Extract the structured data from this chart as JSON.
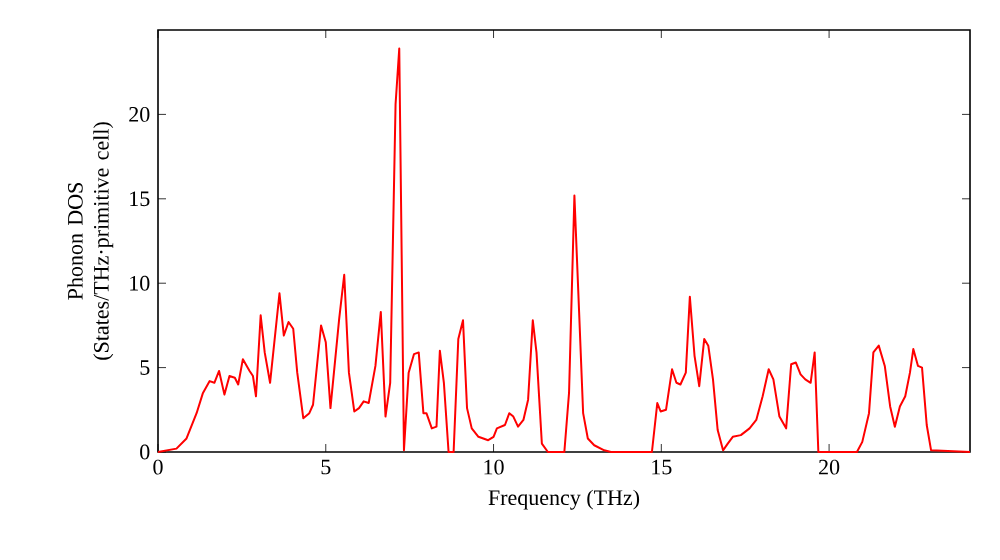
{
  "chart_data": {
    "type": "line",
    "xlabel": "Frequency (THz)",
    "ylabel": "Phonon DOS (States/THz·primitive cell)",
    "xlim": [
      0,
      24.2
    ],
    "ylim": [
      0,
      25
    ],
    "xticks": [
      0,
      5,
      10,
      15,
      20
    ],
    "yticks": [
      0,
      5,
      10,
      15,
      20
    ],
    "grid": false,
    "series": [
      {
        "color": "#ff0000",
        "x": [
          0,
          0.55,
          0.85,
          1.15,
          1.34,
          1.54,
          1.68,
          1.82,
          1.98,
          2.13,
          2.29,
          2.39,
          2.53,
          2.73,
          2.83,
          2.92,
          3.06,
          3.18,
          3.34,
          3.62,
          3.75,
          3.89,
          4.03,
          4.15,
          4.33,
          4.51,
          4.62,
          4.86,
          5.0,
          5.14,
          5.4,
          5.55,
          5.69,
          5.85,
          5.99,
          6.13,
          6.28,
          6.48,
          6.64,
          6.78,
          6.92,
          7.08,
          7.19,
          7.33,
          7.47,
          7.63,
          7.77,
          7.91,
          8.0,
          8.16,
          8.3,
          8.4,
          8.52,
          8.66,
          8.81,
          8.95,
          9.09,
          9.21,
          9.35,
          9.55,
          9.84,
          10.0,
          10.1,
          10.34,
          10.47,
          10.59,
          10.73,
          10.89,
          11.03,
          11.17,
          11.28,
          11.44,
          11.62,
          12.11,
          12.25,
          12.41,
          12.55,
          12.67,
          12.81,
          13.0,
          13.3,
          13.5,
          14.72,
          14.88,
          14.98,
          15.14,
          15.32,
          15.45,
          15.57,
          15.73,
          15.85,
          15.99,
          16.13,
          16.28,
          16.4,
          16.54,
          16.68,
          16.84,
          16.98,
          17.13,
          17.37,
          17.63,
          17.83,
          18.02,
          18.2,
          18.34,
          18.52,
          18.72,
          18.87,
          19.01,
          19.15,
          19.29,
          19.45,
          19.57,
          19.68,
          20.83,
          20.99,
          21.19,
          21.32,
          21.48,
          21.66,
          21.82,
          21.96,
          22.11,
          22.27,
          22.41,
          22.51,
          22.65,
          22.77,
          22.91,
          23.04,
          24.2
        ],
        "values": [
          0,
          0.2,
          0.8,
          2.3,
          3.5,
          4.2,
          4.1,
          4.8,
          3.4,
          4.5,
          4.4,
          4.0,
          5.5,
          4.8,
          4.5,
          3.3,
          8.1,
          5.9,
          4.1,
          9.4,
          6.9,
          7.7,
          7.3,
          4.7,
          2.0,
          2.3,
          2.8,
          7.5,
          6.5,
          2.6,
          7.9,
          10.5,
          4.7,
          2.4,
          2.6,
          3.0,
          2.9,
          5.1,
          8.3,
          2.1,
          4.1,
          20.6,
          23.9,
          0.1,
          4.7,
          5.8,
          5.9,
          2.3,
          2.3,
          1.4,
          1.5,
          6.0,
          4.1,
          0,
          0,
          6.7,
          7.8,
          2.6,
          1.4,
          0.9,
          0.7,
          0.9,
          1.4,
          1.6,
          2.3,
          2.1,
          1.5,
          1.9,
          3.1,
          7.8,
          5.9,
          0.5,
          0,
          0,
          3.5,
          15.2,
          8.3,
          2.3,
          0.8,
          0.4,
          0.1,
          0,
          0,
          2.9,
          2.4,
          2.5,
          4.9,
          4.1,
          4.0,
          4.7,
          9.2,
          5.7,
          3.9,
          6.7,
          6.3,
          4.3,
          1.3,
          0.1,
          0.5,
          0.9,
          1.0,
          1.4,
          1.9,
          3.3,
          4.9,
          4.3,
          2.1,
          1.4,
          5.2,
          5.3,
          4.6,
          4.3,
          4.1,
          5.9,
          0,
          0,
          0.6,
          2.3,
          5.9,
          6.3,
          5.1,
          2.7,
          1.5,
          2.7,
          3.3,
          4.7,
          6.1,
          5.1,
          5.0,
          1.6,
          0.1,
          0
        ]
      }
    ]
  }
}
